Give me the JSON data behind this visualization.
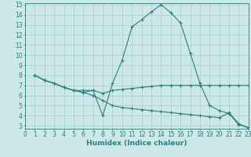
{
  "line1_x": [
    1,
    2,
    3,
    4,
    5,
    6,
    7,
    8,
    9,
    10,
    11,
    12,
    13,
    14,
    15,
    16,
    17,
    18,
    19,
    20,
    21,
    22,
    23
  ],
  "line1_y": [
    8.0,
    7.5,
    7.2,
    6.8,
    6.5,
    6.5,
    6.5,
    4.0,
    7.2,
    9.5,
    12.8,
    13.5,
    14.3,
    15.0,
    14.2,
    13.2,
    10.2,
    7.2,
    5.0,
    4.5,
    4.2,
    3.1,
    2.8
  ],
  "line2_x": [
    1,
    2,
    3,
    4,
    5,
    6,
    7,
    8,
    9,
    10,
    11,
    12,
    13,
    14,
    15,
    16,
    17,
    18,
    19,
    20,
    21,
    22,
    23
  ],
  "line2_y": [
    8.0,
    7.5,
    7.2,
    6.8,
    6.5,
    6.3,
    6.5,
    6.2,
    6.5,
    6.6,
    6.7,
    6.8,
    6.9,
    7.0,
    7.0,
    7.0,
    7.0,
    7.0,
    7.0,
    7.0,
    7.0,
    7.0,
    7.0
  ],
  "line3_x": [
    1,
    2,
    3,
    4,
    5,
    6,
    7,
    8,
    9,
    10,
    11,
    12,
    13,
    14,
    15,
    16,
    17,
    18,
    19,
    20,
    21,
    22,
    23
  ],
  "line3_y": [
    8.0,
    7.5,
    7.2,
    6.8,
    6.5,
    6.3,
    6.0,
    5.5,
    5.0,
    4.8,
    4.7,
    4.6,
    4.5,
    4.4,
    4.3,
    4.2,
    4.1,
    4.0,
    3.9,
    3.8,
    4.3,
    3.2,
    2.8
  ],
  "line_color": "#2d7d7d",
  "bg_color": "#cce8e8",
  "grid_color": "#aacccc",
  "xlabel": "Humidex (Indice chaleur)",
  "xlim": [
    0,
    23
  ],
  "ylim": [
    3,
    15
  ],
  "yticks": [
    3,
    4,
    5,
    6,
    7,
    8,
    9,
    10,
    11,
    12,
    13,
    14,
    15
  ],
  "xticks": [
    0,
    1,
    2,
    3,
    4,
    5,
    6,
    7,
    8,
    9,
    10,
    11,
    12,
    13,
    14,
    15,
    16,
    17,
    18,
    19,
    20,
    21,
    22,
    23
  ],
  "tick_fontsize": 5.5,
  "xlabel_fontsize": 6.5,
  "marker": "+",
  "marker_size": 3.5,
  "line_width": 0.8
}
